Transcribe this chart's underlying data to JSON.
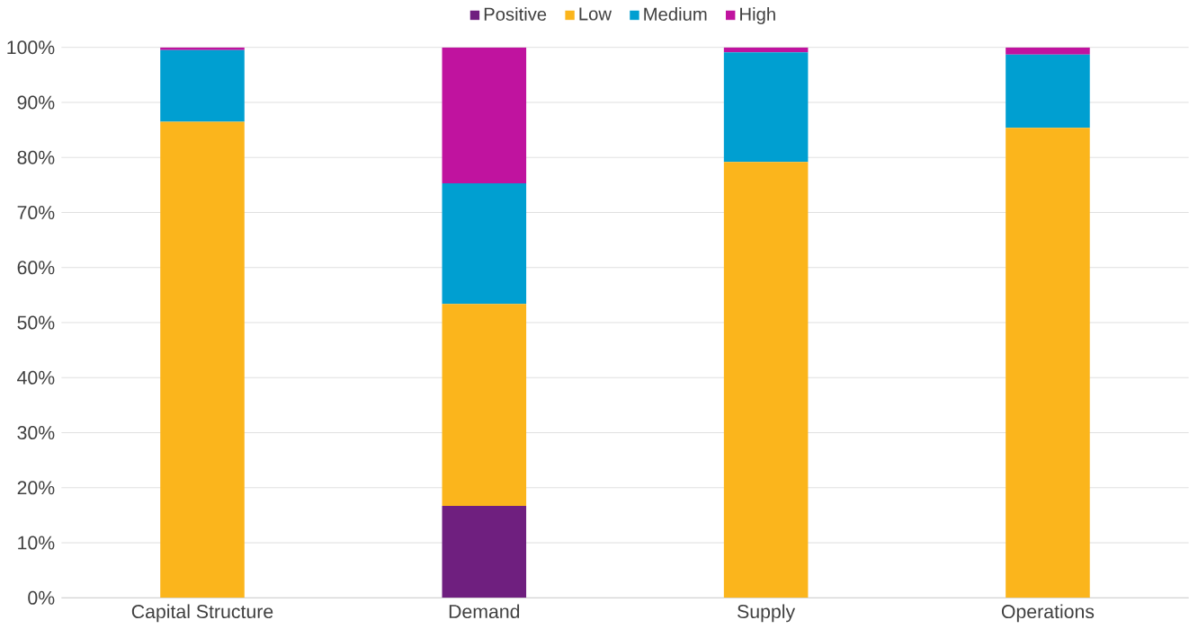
{
  "chart_data": {
    "type": "bar",
    "stacked": true,
    "categories": [
      "Capital Structure",
      "Demand",
      "Supply",
      "Operations"
    ],
    "series": [
      {
        "name": "Positive",
        "color": "#6f1f7f",
        "values": [
          0,
          16.7,
          0,
          0
        ]
      },
      {
        "name": "Low",
        "color": "#fbb51c",
        "values": [
          86.5,
          36.7,
          79.2,
          85.4
        ]
      },
      {
        "name": "Medium",
        "color": "#009fd1",
        "values": [
          13,
          21.9,
          19.9,
          13.3
        ]
      },
      {
        "name": "High",
        "color": "#c0139f",
        "values": [
          0.5,
          24.7,
          0.9,
          1.3
        ]
      }
    ],
    "ylim": [
      0,
      100
    ],
    "yticks": [
      {
        "value": 0,
        "label": "0%"
      },
      {
        "value": 10,
        "label": "10%"
      },
      {
        "value": 20,
        "label": "20%"
      },
      {
        "value": 30,
        "label": "30%"
      },
      {
        "value": 40,
        "label": "40%"
      },
      {
        "value": 50,
        "label": "50%"
      },
      {
        "value": 60,
        "label": "60%"
      },
      {
        "value": 70,
        "label": "70%"
      },
      {
        "value": 80,
        "label": "80%"
      },
      {
        "value": 90,
        "label": "90%"
      },
      {
        "value": 100,
        "label": "100%"
      }
    ],
    "grid": "y",
    "legend": "top"
  }
}
